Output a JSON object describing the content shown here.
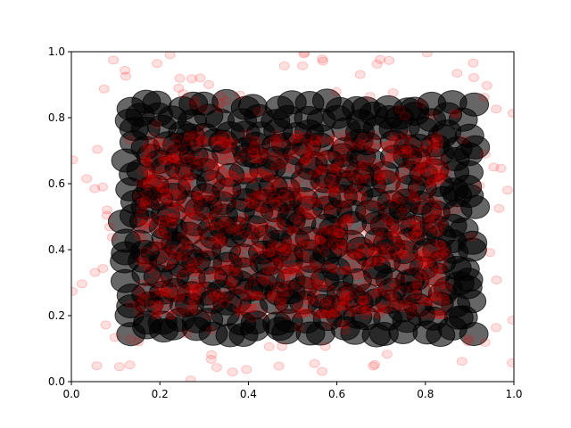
{
  "chart_data": {
    "type": "scatter",
    "title": "",
    "xlabel": "",
    "ylabel": "",
    "xlim": [
      0,
      1
    ],
    "ylim": [
      0,
      1
    ],
    "x_ticks": [
      "0.0",
      "0.2",
      "0.4",
      "0.6",
      "0.8",
      "1.0"
    ],
    "y_ticks": [
      "0.0",
      "0.2",
      "0.4",
      "0.6",
      "0.8",
      "1.0"
    ],
    "grid": false,
    "legend": "none",
    "series": [
      {
        "description_visible": "large grey/black translucent circles forming a rectangular lattice",
        "color": "#000000",
        "alpha": 0.6,
        "x_range": [
          0.13,
          0.9
        ],
        "y_range": [
          0.15,
          0.84
        ],
        "columns": 22,
        "rows": 18,
        "jitter": 0.015
      },
      {
        "description_visible": "small red translucent circles: dense block plus scattered noise",
        "color": "#ff0000",
        "alpha": 0.12,
        "dense_x_range": [
          0.15,
          0.85
        ],
        "dense_y_range": [
          0.2,
          0.75
        ],
        "dense_count": 1200,
        "noise_count": 180
      }
    ]
  }
}
